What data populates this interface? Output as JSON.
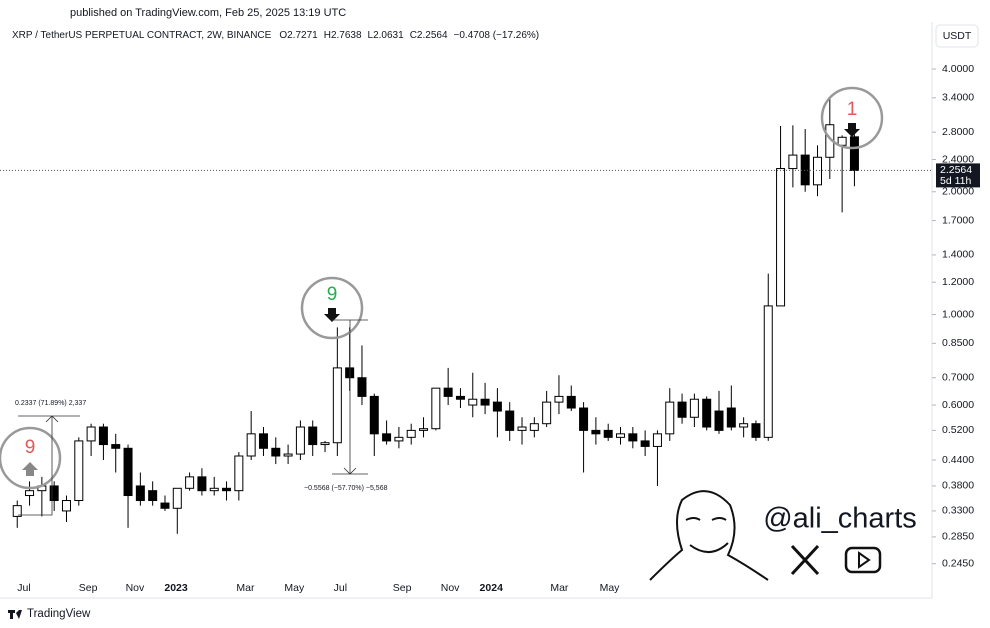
{
  "header": "published on TradingView.com, Feb 25, 2025 13:19 UTC",
  "logo": "TradingView",
  "watermark": "@ali_charts",
  "chart_data": {
    "type": "candlestick",
    "title": "XRP / TetherUS PERPETUAL CONTRACT, 2W, BINANCE",
    "ohlc_prefixes": [
      "O",
      "H",
      "L",
      "C"
    ],
    "change": "−0.4708 (−17.26%)",
    "currency": "USDT",
    "countdown": "5d 11h",
    "log_scale": true,
    "up_color": "#ffffff",
    "down_color": "#000000",
    "ylim": [
      0.226,
      4.58
    ],
    "yticks": [
      {
        "value": 4,
        "label": "4.0000"
      },
      {
        "value": 3.4,
        "label": "3.4000"
      },
      {
        "value": 2.8,
        "label": "2.8000"
      },
      {
        "value": 2.4,
        "label": "2.4000"
      },
      {
        "value": 2,
        "label": "2.0000"
      },
      {
        "value": 1.7,
        "label": "1.7000"
      },
      {
        "value": 1.4,
        "label": "1.4000"
      },
      {
        "value": 1.2,
        "label": "1.2000"
      },
      {
        "value": 1,
        "label": "1.0000"
      },
      {
        "value": 0.85,
        "label": "0.8500"
      },
      {
        "value": 0.7,
        "label": "0.7000"
      },
      {
        "value": 0.6,
        "label": "0.6000"
      },
      {
        "value": 0.52,
        "label": "0.5200"
      },
      {
        "value": 0.44,
        "label": "0.4400"
      },
      {
        "value": 0.38,
        "label": "0.3800"
      },
      {
        "value": 0.33,
        "label": "0.3300"
      },
      {
        "value": 0.285,
        "label": "0.2850"
      },
      {
        "value": 0.245,
        "label": "0.2450"
      }
    ],
    "xlim": [
      -1.4,
      74.3
    ],
    "xticks": [
      {
        "value": 0,
        "label": "Jul"
      },
      {
        "value": 5,
        "label": "Sep"
      },
      {
        "value": 8.8,
        "label": "Nov"
      },
      {
        "value": 12.9,
        "label": "2023"
      },
      {
        "value": 17.8,
        "label": "Mar"
      },
      {
        "value": 21.7,
        "label": "May"
      },
      {
        "value": 25.7,
        "label": "Jul"
      },
      {
        "value": 30.5,
        "label": "Sep"
      },
      {
        "value": 34.4,
        "label": "Nov"
      },
      {
        "value": 38.5,
        "label": "2024"
      },
      {
        "value": 43.3,
        "label": "Mar"
      },
      {
        "value": 47.3,
        "label": "May"
      }
    ],
    "candles": [
      {
        "open": 0.32,
        "high": 0.35,
        "low": 0.3,
        "close": 0.34
      },
      {
        "open": 0.36,
        "high": 0.39,
        "low": 0.34,
        "close": 0.37
      },
      {
        "open": 0.37,
        "high": 0.4,
        "low": 0.32,
        "close": 0.38
      },
      {
        "open": 0.38,
        "high": 0.39,
        "low": 0.33,
        "close": 0.35
      },
      {
        "open": 0.33,
        "high": 0.36,
        "low": 0.31,
        "close": 0.35
      },
      {
        "open": 0.35,
        "high": 0.5,
        "low": 0.34,
        "close": 0.49
      },
      {
        "open": 0.49,
        "high": 0.54,
        "low": 0.45,
        "close": 0.53
      },
      {
        "open": 0.53,
        "high": 0.54,
        "low": 0.44,
        "close": 0.48
      },
      {
        "open": 0.48,
        "high": 0.51,
        "low": 0.41,
        "close": 0.47
      },
      {
        "open": 0.47,
        "high": 0.48,
        "low": 0.3,
        "close": 0.36
      },
      {
        "open": 0.38,
        "high": 0.41,
        "low": 0.34,
        "close": 0.35
      },
      {
        "open": 0.37,
        "high": 0.39,
        "low": 0.34,
        "close": 0.35
      },
      {
        "open": 0.345,
        "high": 0.36,
        "low": 0.33,
        "close": 0.335
      },
      {
        "open": 0.335,
        "high": 0.36,
        "low": 0.29,
        "close": 0.375
      },
      {
        "open": 0.375,
        "high": 0.41,
        "low": 0.37,
        "close": 0.4
      },
      {
        "open": 0.4,
        "high": 0.42,
        "low": 0.36,
        "close": 0.37
      },
      {
        "open": 0.37,
        "high": 0.4,
        "low": 0.36,
        "close": 0.375
      },
      {
        "open": 0.375,
        "high": 0.39,
        "low": 0.35,
        "close": 0.37
      },
      {
        "open": 0.37,
        "high": 0.46,
        "low": 0.35,
        "close": 0.45
      },
      {
        "open": 0.45,
        "high": 0.58,
        "low": 0.44,
        "close": 0.51
      },
      {
        "open": 0.51,
        "high": 0.53,
        "low": 0.45,
        "close": 0.47
      },
      {
        "open": 0.47,
        "high": 0.5,
        "low": 0.43,
        "close": 0.45
      },
      {
        "open": 0.45,
        "high": 0.48,
        "low": 0.43,
        "close": 0.455
      },
      {
        "open": 0.455,
        "high": 0.55,
        "low": 0.44,
        "close": 0.53
      },
      {
        "open": 0.53,
        "high": 0.55,
        "low": 0.45,
        "close": 0.48
      },
      {
        "open": 0.48,
        "high": 0.49,
        "low": 0.46,
        "close": 0.485
      },
      {
        "open": 0.485,
        "high": 0.93,
        "low": 0.45,
        "close": 0.74
      },
      {
        "open": 0.74,
        "high": 0.93,
        "low": 0.65,
        "close": 0.7
      },
      {
        "open": 0.7,
        "high": 0.84,
        "low": 0.6,
        "close": 0.63
      },
      {
        "open": 0.63,
        "high": 0.64,
        "low": 0.45,
        "close": 0.51
      },
      {
        "open": 0.51,
        "high": 0.55,
        "low": 0.48,
        "close": 0.49
      },
      {
        "open": 0.49,
        "high": 0.53,
        "low": 0.47,
        "close": 0.5
      },
      {
        "open": 0.5,
        "high": 0.54,
        "low": 0.48,
        "close": 0.52
      },
      {
        "open": 0.52,
        "high": 0.56,
        "low": 0.5,
        "close": 0.525
      },
      {
        "open": 0.525,
        "high": 0.66,
        "low": 0.52,
        "close": 0.66
      },
      {
        "open": 0.66,
        "high": 0.74,
        "low": 0.6,
        "close": 0.63
      },
      {
        "open": 0.63,
        "high": 0.66,
        "low": 0.59,
        "close": 0.62
      },
      {
        "open": 0.6,
        "high": 0.72,
        "low": 0.56,
        "close": 0.62
      },
      {
        "open": 0.62,
        "high": 0.68,
        "low": 0.57,
        "close": 0.6
      },
      {
        "open": 0.61,
        "high": 0.66,
        "low": 0.5,
        "close": 0.58
      },
      {
        "open": 0.58,
        "high": 0.61,
        "low": 0.49,
        "close": 0.52
      },
      {
        "open": 0.52,
        "high": 0.56,
        "low": 0.48,
        "close": 0.53
      },
      {
        "open": 0.52,
        "high": 0.56,
        "low": 0.5,
        "close": 0.54
      },
      {
        "open": 0.54,
        "high": 0.65,
        "low": 0.53,
        "close": 0.61
      },
      {
        "open": 0.61,
        "high": 0.71,
        "low": 0.57,
        "close": 0.63
      },
      {
        "open": 0.63,
        "high": 0.67,
        "low": 0.58,
        "close": 0.59
      },
      {
        "open": 0.59,
        "high": 0.61,
        "low": 0.41,
        "close": 0.52
      },
      {
        "open": 0.52,
        "high": 0.56,
        "low": 0.48,
        "close": 0.51
      },
      {
        "open": 0.52,
        "high": 0.54,
        "low": 0.49,
        "close": 0.5
      },
      {
        "open": 0.5,
        "high": 0.53,
        "low": 0.48,
        "close": 0.51
      },
      {
        "open": 0.51,
        "high": 0.53,
        "low": 0.47,
        "close": 0.49
      },
      {
        "open": 0.49,
        "high": 0.52,
        "low": 0.45,
        "close": 0.475
      },
      {
        "open": 0.475,
        "high": 0.52,
        "low": 0.38,
        "close": 0.51
      },
      {
        "open": 0.51,
        "high": 0.66,
        "low": 0.49,
        "close": 0.61
      },
      {
        "open": 0.61,
        "high": 0.64,
        "low": 0.54,
        "close": 0.56
      },
      {
        "open": 0.56,
        "high": 0.64,
        "low": 0.53,
        "close": 0.62
      },
      {
        "open": 0.62,
        "high": 0.63,
        "low": 0.52,
        "close": 0.53
      },
      {
        "open": 0.58,
        "high": 0.65,
        "low": 0.51,
        "close": 0.52
      },
      {
        "open": 0.59,
        "high": 0.67,
        "low": 0.52,
        "close": 0.53
      },
      {
        "open": 0.53,
        "high": 0.56,
        "low": 0.5,
        "close": 0.54
      },
      {
        "open": 0.54,
        "high": 0.55,
        "low": 0.49,
        "close": 0.5
      },
      {
        "open": 0.5,
        "high": 1.26,
        "low": 0.49,
        "close": 1.05
      },
      {
        "open": 1.05,
        "high": 2.9,
        "low": 1.05,
        "close": 2.28
      },
      {
        "open": 2.28,
        "high": 2.91,
        "low": 2.05,
        "close": 2.46
      },
      {
        "open": 2.46,
        "high": 2.85,
        "low": 2.0,
        "close": 2.08
      },
      {
        "open": 2.08,
        "high": 2.6,
        "low": 1.95,
        "close": 2.43
      },
      {
        "open": 2.43,
        "high": 3.38,
        "low": 2.15,
        "close": 2.92
      },
      {
        "open": 2.6,
        "high": 2.75,
        "low": 1.78,
        "close": 2.72
      },
      {
        "open": 2.7271,
        "high": 2.7638,
        "low": 2.0631,
        "close": 2.2564
      }
    ],
    "signals": [
      {
        "text": "9",
        "color": "#e05a5a"
      },
      {
        "text": "9",
        "color": "#22b04b"
      },
      {
        "text": "1",
        "color": "#e05a5a"
      }
    ],
    "measures": [
      "0.2337 (71.89%) 2,337",
      "−0.5568 (−57.70%) −5,568"
    ]
  }
}
